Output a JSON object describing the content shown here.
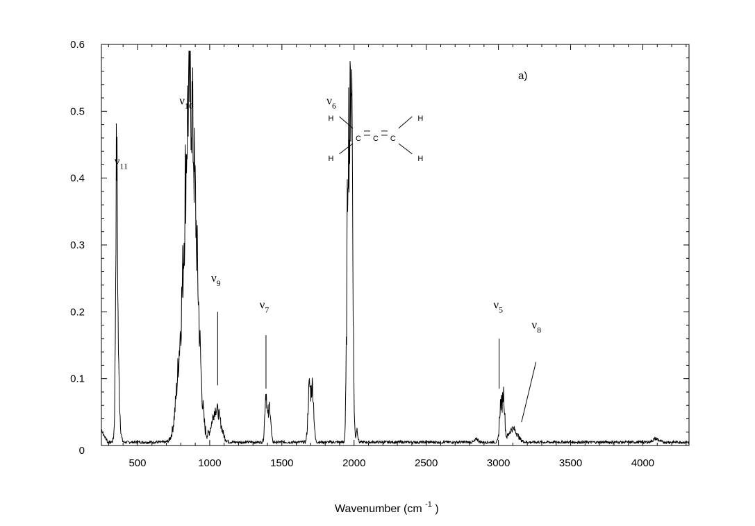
{
  "chart_data": {
    "type": "line",
    "panel_label": "a)",
    "xlabel": "Wavenumber (cm",
    "xlabel_sup": "-1",
    "xlabel_close": ")",
    "ylabel": "",
    "xlim": [
      250,
      4320
    ],
    "ylim": [
      0,
      0.6
    ],
    "x_ticks": [
      500,
      1000,
      1500,
      2000,
      2500,
      3000,
      3500,
      4000
    ],
    "x_tick_labels": [
      "500",
      "1000",
      "1500",
      "2000",
      "2500",
      "3000",
      "3500",
      "4000"
    ],
    "y_ticks": [
      0,
      0.1,
      0.2,
      0.3,
      0.4,
      0.5,
      0.6
    ],
    "y_tick_labels": [
      "0",
      "0.1",
      "0.2",
      "0.3",
      "0.4",
      "0.5",
      "0.6"
    ],
    "grid": false,
    "series": [
      {
        "peaks": [
          {
            "center": 355,
            "height": 0.33,
            "width": 6
          },
          {
            "center": 362,
            "height": 0.12,
            "width": 12
          },
          {
            "center": 800,
            "height": 0.12,
            "width": 30
          },
          {
            "center": 855,
            "height": 0.42,
            "width": 28
          },
          {
            "center": 900,
            "height": 0.25,
            "width": 30
          },
          {
            "center": 1045,
            "height": 0.05,
            "width": 30
          },
          {
            "center": 1390,
            "height": 0.075,
            "width": 8
          },
          {
            "center": 1415,
            "height": 0.055,
            "width": 8
          },
          {
            "center": 1690,
            "height": 0.08,
            "width": 9
          },
          {
            "center": 1712,
            "height": 0.08,
            "width": 9
          },
          {
            "center": 1960,
            "height": 0.44,
            "width": 9
          },
          {
            "center": 1982,
            "height": 0.54,
            "width": 9
          },
          {
            "center": 2020,
            "height": 0.02,
            "width": 6
          },
          {
            "center": 2850,
            "height": 0.005,
            "width": 10
          },
          {
            "center": 3015,
            "height": 0.055,
            "width": 8
          },
          {
            "center": 3035,
            "height": 0.07,
            "width": 8
          },
          {
            "center": 3100,
            "height": 0.02,
            "width": 30
          },
          {
            "center": 4090,
            "height": 0.005,
            "width": 20
          }
        ]
      }
    ],
    "annotations": [
      {
        "symbol": "ν",
        "sub": "11",
        "x": 340,
        "y": 0.42
      },
      {
        "symbol": "ν",
        "sub": "10",
        "x": 790,
        "y": 0.51
      },
      {
        "symbol": "ν",
        "sub": "9",
        "x": 1010,
        "y": 0.245
      },
      {
        "symbol": "ν",
        "sub": "7",
        "x": 1345,
        "y": 0.205
      },
      {
        "symbol": "ν",
        "sub": "6",
        "x": 1810,
        "y": 0.51
      },
      {
        "symbol": "ν",
        "sub": "5",
        "x": 2965,
        "y": 0.205
      },
      {
        "symbol": "ν",
        "sub": "8",
        "x": 3230,
        "y": 0.175
      }
    ],
    "leader_lines": [
      {
        "x1": 1055,
        "y1": 0.2,
        "x2": 1055,
        "y2": 0.09
      },
      {
        "x1": 1390,
        "y1": 0.165,
        "x2": 1390,
        "y2": 0.085
      },
      {
        "x1": 3005,
        "y1": 0.16,
        "x2": 3005,
        "y2": 0.085
      },
      {
        "x1": 3260,
        "y1": 0.125,
        "x2": 3160,
        "y2": 0.035
      }
    ],
    "molecule": {
      "atoms": [
        {
          "label": "H",
          "x": 1840,
          "y": 0.49
        },
        {
          "label": "H",
          "x": 1840,
          "y": 0.43
        },
        {
          "label": "C",
          "x": 2030,
          "y": 0.46
        },
        {
          "label": "C",
          "x": 2150,
          "y": 0.46
        },
        {
          "label": "C",
          "x": 2270,
          "y": 0.46
        },
        {
          "label": "H",
          "x": 2460,
          "y": 0.49
        },
        {
          "label": "H",
          "x": 2460,
          "y": 0.43
        }
      ]
    }
  }
}
